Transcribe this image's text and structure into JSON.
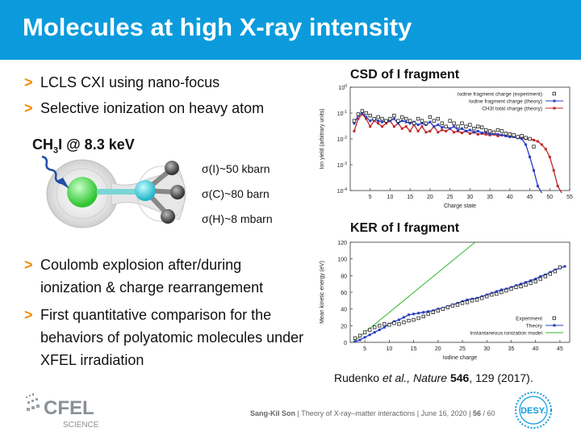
{
  "slide": {
    "title": "Molecules at high X-ray intensity",
    "bullets": [
      "LCLS CXI using nano-focus",
      "Selective ionization on heavy atom",
      "Coulomb explosion after/during ionization & charge rearrangement",
      "First quantitative comparison for the behaviors of polyatomic molecules under XFEL irradiation"
    ],
    "molecule_label_main": "CH",
    "molecule_label_sub": "3",
    "molecule_label_rest": "I @ 8.3 keV",
    "cross_sections": [
      "σ(I)~50 kbarn",
      "σ(C)~80 barn",
      "σ(H)~8 mbarn"
    ],
    "citation_pre": "Rudenko ",
    "citation_italic": "et al., Nature",
    "citation_bold": " 546",
    "citation_post": ", 129 (2017).",
    "footer_author": "Sang-Kil Son",
    "footer_text": "Theory of X-ray–matter interactions | June 16, 2020 |",
    "footer_page": "56",
    "footer_total": "/ 60",
    "logo_cfel": "CFEL",
    "logo_science": "SCIENCE",
    "logo_desy": "DESY."
  },
  "chart_data": [
    {
      "type": "line",
      "title": "CSD of I fragment",
      "xlabel": "Charge state",
      "ylabel": "Ion yield (arbitrary units)",
      "xlim": [
        0,
        55
      ],
      "ylim_log10": [
        -4,
        0
      ],
      "yscale": "log",
      "xticks": [
        5,
        10,
        15,
        20,
        25,
        30,
        35,
        40,
        45,
        50,
        55
      ],
      "yticks": [
        "10^-4",
        "10^-3",
        "10^-2",
        "10^-1",
        "10^0"
      ],
      "legend": [
        "Iodine fragment charge (experiment)",
        "Iodine fragment charge (theory)",
        "CH3I total charge (theory)"
      ],
      "legend_position": "top-right",
      "series": [
        {
          "name": "Iodine fragment charge (experiment)",
          "color": "#222222",
          "marker": "square-open",
          "x": [
            1,
            2,
            3,
            4,
            5,
            6,
            7,
            8,
            9,
            10,
            11,
            12,
            13,
            14,
            15,
            16,
            17,
            18,
            19,
            20,
            21,
            22,
            23,
            24,
            25,
            26,
            27,
            28,
            29,
            30,
            31,
            32,
            33,
            34,
            35,
            36,
            37,
            38,
            39,
            40,
            41,
            42,
            43,
            44,
            45,
            46
          ],
          "y": [
            0.05,
            0.09,
            0.12,
            0.1,
            0.08,
            0.06,
            0.07,
            0.06,
            0.05,
            0.06,
            0.08,
            0.05,
            0.07,
            0.06,
            0.05,
            0.04,
            0.06,
            0.05,
            0.04,
            0.07,
            0.05,
            0.06,
            0.04,
            0.03,
            0.05,
            0.04,
            0.03,
            0.04,
            0.03,
            0.035,
            0.025,
            0.03,
            0.028,
            0.022,
            0.02,
            0.018,
            0.022,
            0.02,
            0.016,
            0.015,
            0.014,
            0.012,
            0.013,
            0.011,
            0.01,
            0.005
          ]
        },
        {
          "name": "Iodine fragment charge (theory)",
          "color": "#2a3fbf",
          "marker": "square-filled",
          "x": [
            1,
            2,
            3,
            4,
            5,
            6,
            7,
            8,
            9,
            10,
            11,
            12,
            13,
            14,
            15,
            16,
            17,
            18,
            19,
            20,
            21,
            22,
            23,
            24,
            25,
            26,
            27,
            28,
            29,
            30,
            31,
            32,
            33,
            34,
            35,
            36,
            37,
            38,
            39,
            40,
            41,
            42,
            43,
            44,
            45,
            46,
            47,
            48
          ],
          "y": [
            0.04,
            0.08,
            0.1,
            0.07,
            0.05,
            0.06,
            0.05,
            0.045,
            0.05,
            0.05,
            0.06,
            0.04,
            0.05,
            0.045,
            0.04,
            0.045,
            0.035,
            0.04,
            0.035,
            0.045,
            0.03,
            0.035,
            0.028,
            0.03,
            0.025,
            0.03,
            0.022,
            0.025,
            0.02,
            0.022,
            0.018,
            0.02,
            0.017,
            0.018,
            0.015,
            0.016,
            0.015,
            0.014,
            0.013,
            0.012,
            0.012,
            0.011,
            0.01,
            0.006,
            0.002,
            0.0006,
            0.00015,
            8e-05
          ]
        },
        {
          "name": "CH3I total charge (theory)",
          "color": "#c0282a",
          "marker": "square-filled",
          "x": [
            1,
            2,
            3,
            4,
            5,
            6,
            7,
            8,
            9,
            10,
            11,
            12,
            13,
            14,
            15,
            16,
            17,
            18,
            19,
            20,
            21,
            22,
            23,
            24,
            25,
            26,
            27,
            28,
            29,
            30,
            31,
            32,
            33,
            34,
            35,
            36,
            37,
            38,
            39,
            40,
            41,
            42,
            43,
            44,
            45,
            46,
            47,
            48,
            49,
            50,
            51,
            52,
            53
          ],
          "y": [
            0.02,
            0.06,
            0.09,
            0.06,
            0.03,
            0.05,
            0.04,
            0.03,
            0.04,
            0.05,
            0.03,
            0.04,
            0.025,
            0.03,
            0.02,
            0.035,
            0.02,
            0.03,
            0.018,
            0.02,
            0.03,
            0.018,
            0.022,
            0.02,
            0.025,
            0.018,
            0.02,
            0.017,
            0.02,
            0.016,
            0.018,
            0.015,
            0.016,
            0.015,
            0.014,
            0.015,
            0.013,
            0.014,
            0.013,
            0.012,
            0.012,
            0.011,
            0.011,
            0.01,
            0.01,
            0.009,
            0.008,
            0.006,
            0.004,
            0.002,
            0.0006,
            0.00015,
            8e-05
          ]
        }
      ]
    },
    {
      "type": "line",
      "title": "KER of I fragment",
      "xlabel": "Iodine charge",
      "ylabel": "Mean kinetic energy (eV)",
      "xlim": [
        2,
        47
      ],
      "ylim": [
        0,
        120
      ],
      "xticks": [
        5,
        10,
        15,
        20,
        25,
        30,
        35,
        40,
        45
      ],
      "yticks": [
        0,
        20,
        40,
        60,
        80,
        100,
        120
      ],
      "legend": [
        "Experiment",
        "Theory",
        "Instantaneous ionization model"
      ],
      "legend_position": "bottom-right",
      "series": [
        {
          "name": "Experiment",
          "color": "#222222",
          "marker": "square-open",
          "x": [
            3,
            4,
            5,
            6,
            7,
            8,
            9,
            10,
            11,
            12,
            13,
            14,
            15,
            16,
            17,
            18,
            19,
            20,
            21,
            22,
            23,
            24,
            25,
            26,
            27,
            28,
            29,
            30,
            31,
            32,
            33,
            34,
            35,
            36,
            37,
            38,
            39,
            40,
            41,
            42,
            43,
            44,
            45
          ],
          "y": [
            5,
            8,
            12,
            15,
            18,
            20,
            22,
            21,
            23,
            22,
            24,
            26,
            27,
            29,
            31,
            34,
            36,
            38,
            40,
            42,
            44,
            45,
            47,
            48,
            50,
            51,
            53,
            55,
            57,
            58,
            60,
            62,
            64,
            66,
            67,
            69,
            71,
            73,
            76,
            79,
            82,
            85,
            90
          ]
        },
        {
          "name": "Theory",
          "color": "#2a3fbf",
          "marker": "square-filled",
          "x": [
            3,
            4,
            5,
            6,
            7,
            8,
            9,
            10,
            11,
            12,
            13,
            14,
            15,
            16,
            17,
            18,
            19,
            20,
            21,
            22,
            23,
            24,
            25,
            26,
            27,
            28,
            29,
            30,
            31,
            32,
            33,
            34,
            35,
            36,
            37,
            38,
            39,
            40,
            41,
            42,
            43,
            44,
            45,
            46
          ],
          "y": [
            1,
            3,
            6,
            9,
            12,
            15,
            18,
            22,
            25,
            27,
            30,
            33,
            34,
            35,
            36,
            37,
            38,
            40,
            41,
            43,
            45,
            47,
            49,
            51,
            52,
            53,
            55,
            57,
            59,
            61,
            63,
            64,
            66,
            68,
            70,
            72,
            74,
            76,
            79,
            81,
            84,
            87,
            89,
            91
          ]
        },
        {
          "name": "Instantaneous ionization model",
          "color": "#2bb52b",
          "marker": "none",
          "x": [
            2.5,
            27.6
          ],
          "y": [
            0,
            120
          ]
        }
      ]
    }
  ]
}
